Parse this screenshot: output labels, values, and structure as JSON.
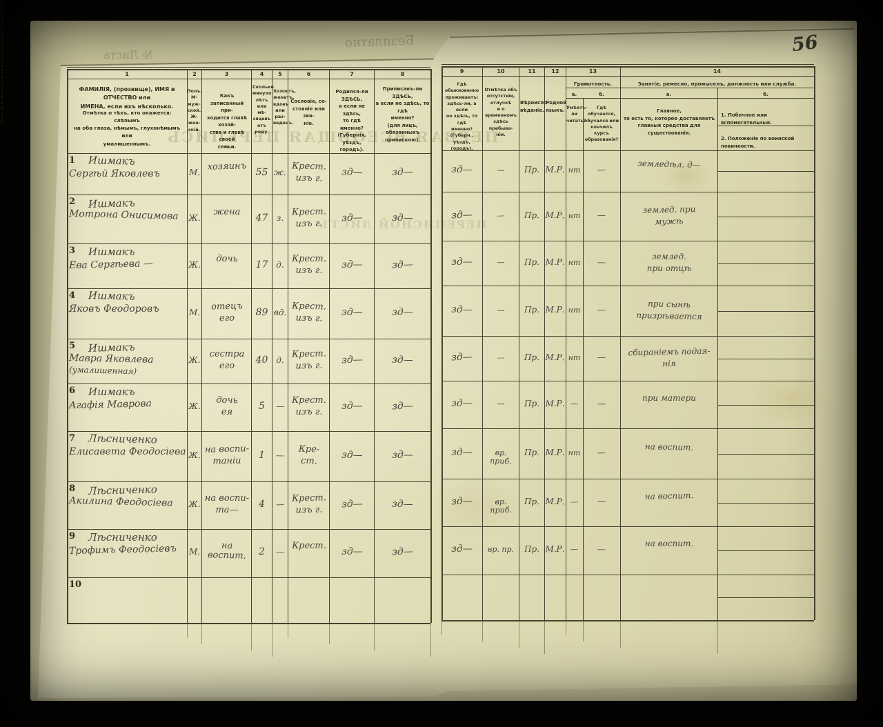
{
  "page": {
    "number": "56"
  },
  "labels": {
    "one": "1",
    "two": "2"
  },
  "bleedthrough": {
    "items": [
      "№ Листа",
      "Безплатно",
      "ПЕРВАЯ ВСЕОБЩАЯ ПЕРЕПИСЬ",
      "ПЕРЕПИСНОЙ ЛИСТЪ"
    ]
  },
  "header": {
    "col_numbers": [
      "1",
      "2",
      "3",
      "4",
      "5",
      "6",
      "7",
      "8",
      "9",
      "10",
      "11",
      "12",
      "13",
      "14"
    ],
    "c1_main": "ФАМИЛІЯ, (прозвище), ИМЯ и ОТЧЕСТВО или\nИМЕНА, если ихъ нѣсколько.",
    "c1_note": "Отмѣтка о тѣхъ, кто окажется: слѣпымъ\nна оба глаза, нѣмымъ, глухонѣмымъ или\nумалишеннымъ.",
    "c2": "Полъ.\nМ-муж-\nской.\nЖ-жен-\nскій.",
    "c3": "Какъ записанный при-\nходится главѣ хозяй-\nства и главѣ своей\nсемьи.",
    "c4": "Сколько\nминуло\nлѣтъ\nили мѣ-\nсяцевъ\nотъ роду.",
    "c5": "Холостъ,\nженатъ,\nвдовъ\nили раз-\nведенъ.",
    "c6": "Сословіе, со-\nстояніе или зва-\nніе.",
    "c7": "Родился-ли ЗДѢСЬ,\nа если не здѣсь,\nто гдѣ именно?\n(Губернія, уѣздъ, городъ).",
    "c8": "Приписанъ-ли ЗДѢСЬ,\nа если не здѣсь, то гдѣ\nименно?\n(для лицъ, обязанныхъ\nприпискою).",
    "c9": "Гдѣ обыкновенно\nпроживаетъ:\nздѣсь-ли, а если\nне здѣсь, то гдѣ\nименно?\n(Губерн., уѣздъ, городъ).",
    "c10": "Отмѣтка объ\nотсутствіи, отлучкѣ\nи о временномъ\nздѣсь пребыва-\nніи.",
    "c11": "Вѣроиспо-\nвѣданіе.",
    "c12": "Родной\nязыкъ.",
    "c13_title": "Грамотность.",
    "c13_a_letter": "а.",
    "c13_b_letter": "б.",
    "c13_a": "Умѣетъ-\nли\nчитать?",
    "c13_b": "Гдѣ обучается,\nобучался или\nкончилъ курсъ\nобразованія?",
    "c14_title": "Занятіе, ремесло, промыселъ, должность или служба.",
    "c14_a_letter": "а.",
    "c14_b_letter": "б.",
    "c14_a": "Главное,\nто есть то, которое доставляетъ\nглавныя средства для существованія.",
    "c14_b1": "1.  Побочное или вспомогательныя.",
    "c14_b2": "2.  Положеніе по воинской повинности."
  },
  "rows": [
    {
      "num": "1",
      "name1": "Ишмакъ",
      "name2": "Сергѣй Яковлевъ",
      "name3": "",
      "sex": "М.",
      "kin1": "хозяинъ",
      "kin2": "",
      "age": "55",
      "marital": "ж.",
      "est1": "Крест.",
      "est2": "изъ г.",
      "born": "зд—",
      "reg": "зд—",
      "res": "зд—",
      "abs": "—",
      "faith": "Пр.",
      "lang": "М.Р.",
      "lita": "нт",
      "litb": "—",
      "occ1": "земледѣл. д—",
      "occ2": ""
    },
    {
      "num": "2",
      "name1": "Ишмакъ",
      "name2": "Мотрона Онисимова",
      "name3": "",
      "sex": "Ж.",
      "kin1": "жена",
      "kin2": "",
      "age": "47",
      "marital": "з.",
      "est1": "Крест.",
      "est2": "изъ г.",
      "born": "зд—",
      "reg": "зд—",
      "res": "зд—",
      "abs": "—",
      "faith": "Пр.",
      "lang": "М.Р.",
      "lita": "нт",
      "litb": "—",
      "occ1": "землед. при",
      "occ2": "мужѣ"
    },
    {
      "num": "3",
      "name1": "Ишмакъ",
      "name2": "Ева Сергѣева —",
      "name3": "",
      "sex": "Ж.",
      "kin1": "дочь",
      "kin2": "",
      "age": "17",
      "marital": "д.",
      "est1": "Крест.",
      "est2": "изъ г.",
      "born": "зд—",
      "reg": "зд—",
      "res": "зд—",
      "abs": "—",
      "faith": "Пр.",
      "lang": "М.Р.",
      "lita": "нт",
      "litb": "—",
      "occ1": "землед.",
      "occ2": "при отцѣ"
    },
    {
      "num": "4",
      "name1": "Ишмакъ",
      "name2": "Яковъ Феодоровъ",
      "name3": "",
      "sex": "М.",
      "kin1": "отецъ",
      "kin2": "его",
      "age": "89",
      "marital": "вд.",
      "est1": "Крест.",
      "est2": "изъ г.",
      "born": "зд—",
      "reg": "зд—",
      "res": "зд—",
      "abs": "—",
      "faith": "Пр.",
      "lang": "М.Р.",
      "lita": "нт",
      "litb": "—",
      "occ1": "при сынѣ",
      "occ2": "призрѣвается"
    },
    {
      "num": "5",
      "name1": "Ишмакъ",
      "name2": "Мавра Яковлева",
      "name3": "(умалишенная)",
      "sex": "Ж.",
      "kin1": "сестра",
      "kin2": "его",
      "age": "40",
      "marital": "д.",
      "est1": "Крест.",
      "est2": "изъ г.",
      "born": "зд—",
      "reg": "зд—",
      "res": "зд—",
      "abs": "—",
      "faith": "Пр.",
      "lang": "М.Р.",
      "lita": "нт",
      "litb": "—",
      "occ1": "сбираніемъ подая-",
      "occ2": "нія"
    },
    {
      "num": "6",
      "name1": "Ишмакъ",
      "name2": "Агафія Маврова",
      "name3": "",
      "sex": "Ж.",
      "kin1": "дочь",
      "kin2": "ея",
      "age": "5",
      "marital": "—",
      "est1": "Крест.",
      "est2": "изъ г.",
      "born": "зд—",
      "reg": "зд—",
      "res": "зд—",
      "abs": "—",
      "faith": "Пр.",
      "lang": "М.Р.",
      "lita": "—",
      "litb": "—",
      "occ1": "при матери",
      "occ2": ""
    },
    {
      "num": "7",
      "name1": "Лѣсниченко",
      "name2": "Елисавета Феодосіева",
      "name3": "",
      "sex": "Ж.",
      "kin1": "на воспи-",
      "kin2": "таніи",
      "age": "1",
      "marital": "—",
      "est1": "Кре-",
      "est2": "ст.",
      "born": "зд—",
      "reg": "зд—",
      "res": "зд—",
      "abs": "вр. приб.",
      "faith": "Пр.",
      "lang": "М.Р.",
      "lita": "нт",
      "litb": "—",
      "occ1": "на воспит.",
      "occ2": ""
    },
    {
      "num": "8",
      "name1": "Лѣсниченко",
      "name2": "Акилина Феодосіева",
      "name3": "",
      "sex": "Ж.",
      "kin1": "на воспи-",
      "kin2": "та—",
      "age": "4",
      "marital": "—",
      "est1": "Крест.",
      "est2": "изъ г.",
      "born": "зд—",
      "reg": "зд—",
      "res": "зд—",
      "abs": "вр. приб.",
      "faith": "Пр.",
      "lang": "М.Р.",
      "lita": "—",
      "litb": "—",
      "occ1": "на воспит.",
      "occ2": ""
    },
    {
      "num": "9",
      "name1": "Лѣсниченко",
      "name2": "Трофимъ Феодосіевъ",
      "name3": "",
      "sex": "М.",
      "kin1": "на воспит.",
      "kin2": "",
      "age": "2",
      "marital": "—",
      "est1": "Крест.",
      "est2": "",
      "born": "зд—",
      "reg": "зд—",
      "res": "зд—",
      "abs": "вр. пр.",
      "faith": "Пр.",
      "lang": "М.Р.",
      "lita": "—",
      "litb": "—",
      "occ1": "на воспит.",
      "occ2": ""
    },
    {
      "num": "10",
      "name1": "",
      "name2": "",
      "name3": "",
      "sex": "",
      "kin1": "",
      "kin2": "",
      "age": "",
      "marital": "",
      "est1": "",
      "est2": "",
      "born": "",
      "reg": "",
      "res": "",
      "abs": "",
      "faith": "",
      "lang": "",
      "lita": "",
      "litb": "",
      "occ1": "",
      "occ2": ""
    }
  ]
}
